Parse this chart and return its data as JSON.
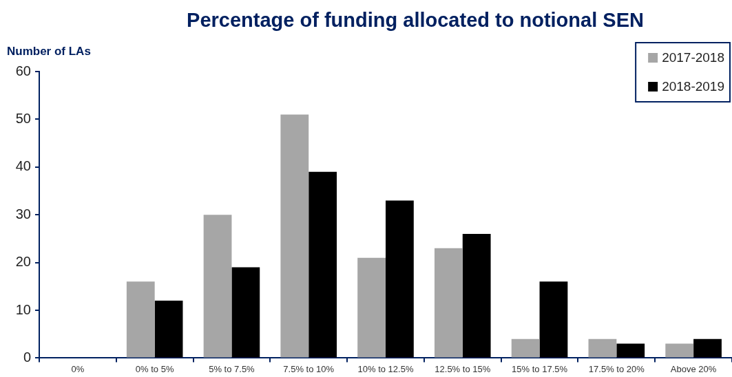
{
  "chart_data": {
    "type": "bar",
    "title": "Percentage of funding allocated to notional SEN",
    "ylabel": "Number of LAs",
    "categories": [
      "0%",
      "0% to 5%",
      "5% to 7.5%",
      "7.5% to 10%",
      "10% to 12.5%",
      "12.5% to 15%",
      "15% to 17.5%",
      "17.5% to 20%",
      "Above 20%"
    ],
    "series": [
      {
        "name": "2017-2018",
        "color": "#a6a6a6",
        "values": [
          0,
          16,
          30,
          51,
          21,
          23,
          4,
          4,
          3
        ]
      },
      {
        "name": "2018-2019",
        "color": "#000000",
        "values": [
          0,
          12,
          19,
          39,
          33,
          26,
          16,
          3,
          4
        ]
      }
    ],
    "ylim": [
      0,
      60
    ],
    "yticks": [
      0,
      10,
      20,
      30,
      40,
      50,
      60
    ],
    "grid": false,
    "legend": "top right"
  }
}
